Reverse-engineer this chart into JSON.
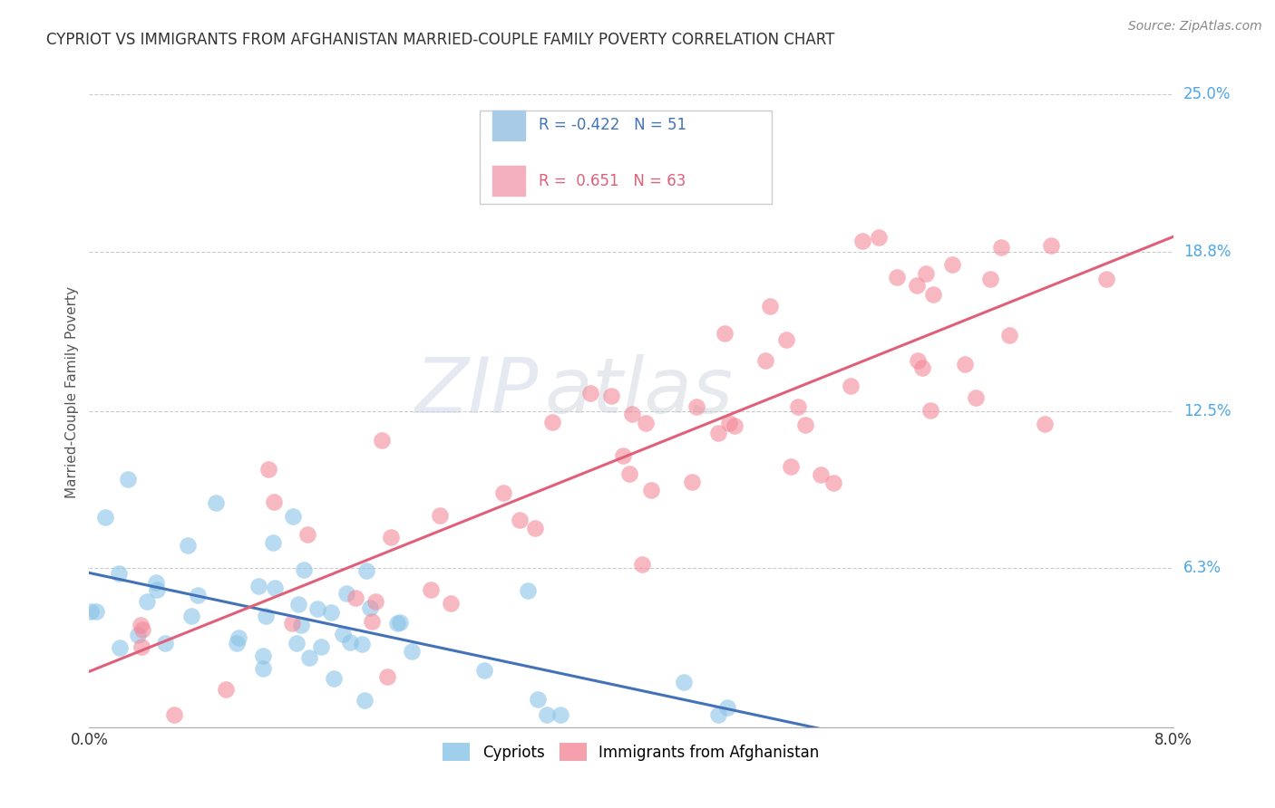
{
  "title": "CYPRIOT VS IMMIGRANTS FROM AFGHANISTAN MARRIED-COUPLE FAMILY POVERTY CORRELATION CHART",
  "source": "Source: ZipAtlas.com",
  "ylabel": "Married-Couple Family Poverty",
  "xmin": 0.0,
  "xmax": 0.08,
  "ymin": 0.0,
  "ymax": 0.265,
  "yticks": [
    0.0,
    0.063,
    0.125,
    0.188,
    0.25
  ],
  "ytick_labels": [
    "",
    "6.3%",
    "12.5%",
    "18.8%",
    "25.0%"
  ],
  "cypriot_color": "#89c4e8",
  "afghanistan_color": "#f4899a",
  "cypriot_line_color": "#4472b8",
  "afghanistan_line_color": "#e0607a",
  "cypriot_legend_color": "#a8cce8",
  "afghanistan_legend_color": "#f4b0be",
  "background_color": "#ffffff",
  "grid_color": "#cccccc",
  "watermark_zip": "ZIP",
  "watermark_atlas": "atlas",
  "cypriot_R": -0.422,
  "cypriot_N": 51,
  "afghanistan_R": 0.651,
  "afghanistan_N": 63,
  "cyp_seed": 10,
  "afg_seed": 20
}
